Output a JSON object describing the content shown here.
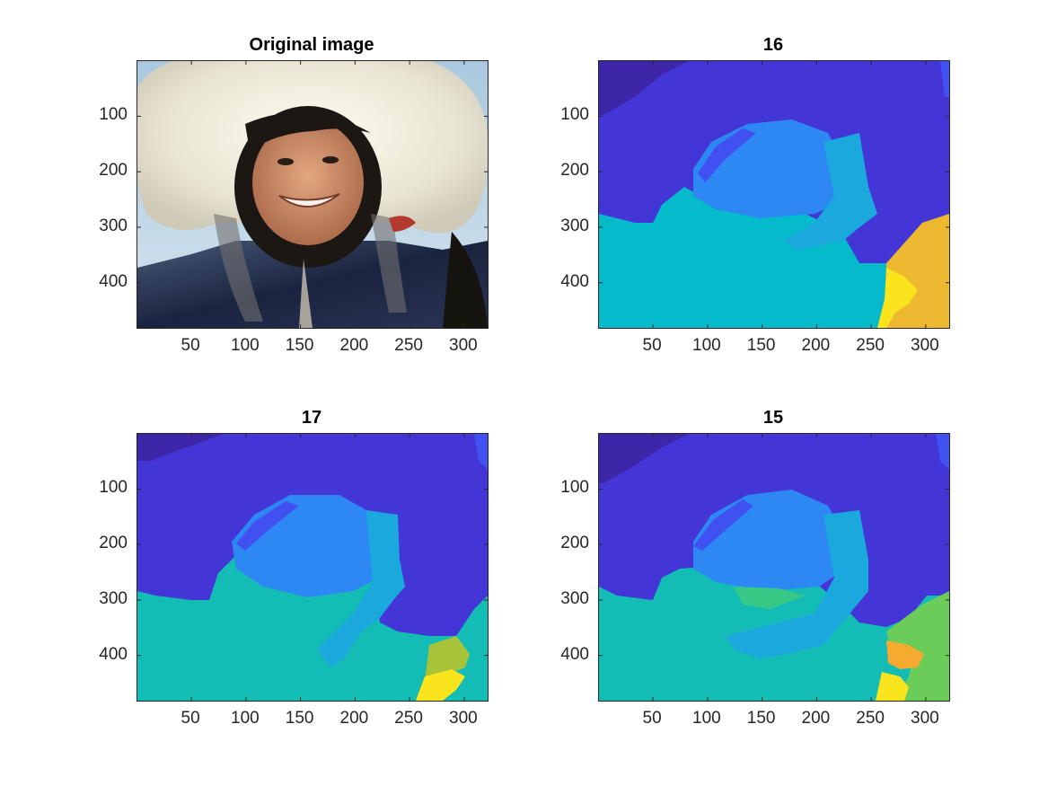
{
  "figure": {
    "panels": [
      {
        "id": "original",
        "title": "Original image",
        "kind": "photo"
      },
      {
        "id": "k16",
        "title": "16",
        "kind": "segmentation"
      },
      {
        "id": "k17",
        "title": "17",
        "kind": "segmentation"
      },
      {
        "id": "k15",
        "title": "15",
        "kind": "segmentation"
      }
    ]
  },
  "chart_data": [
    {
      "type": "heatmap",
      "title": "Original image",
      "xlim": [
        0.5,
        321.5
      ],
      "ylim": [
        0.5,
        481.5
      ],
      "y_reversed": true,
      "xticks": [
        50,
        100,
        150,
        200,
        250,
        300
      ],
      "yticks": [
        100,
        200,
        300,
        400
      ],
      "image": "photograph of a smiling person wearing a white fur-lined hood"
    },
    {
      "type": "heatmap",
      "title": "16",
      "xlim": [
        0.5,
        321.5
      ],
      "ylim": [
        0.5,
        481.5
      ],
      "y_reversed": true,
      "xticks": [
        50,
        100,
        150,
        200,
        250,
        300
      ],
      "yticks": [
        100,
        200,
        300,
        400
      ],
      "colors": [
        "#3e26a8",
        "#4435d6",
        "#4150f0",
        "#2d88f3",
        "#1ba8dd",
        "#04bacb",
        "#eeb830",
        "#f9e41d"
      ]
    },
    {
      "type": "heatmap",
      "title": "17",
      "xlim": [
        0.5,
        321.5
      ],
      "ylim": [
        0.5,
        481.5
      ],
      "y_reversed": true,
      "xticks": [
        50,
        100,
        150,
        200,
        250,
        300
      ],
      "yticks": [
        100,
        200,
        300,
        400
      ],
      "colors": [
        "#3e26a8",
        "#4435d6",
        "#4150f0",
        "#2d88f3",
        "#1ba8dd",
        "#13bcb5",
        "#a6c33a",
        "#f9e41d"
      ]
    },
    {
      "type": "heatmap",
      "title": "15",
      "xlim": [
        0.5,
        321.5
      ],
      "ylim": [
        0.5,
        481.5
      ],
      "y_reversed": true,
      "xticks": [
        50,
        100,
        150,
        200,
        250,
        300
      ],
      "yticks": [
        100,
        200,
        300,
        400
      ],
      "colors": [
        "#3e26a8",
        "#4435d6",
        "#4150f0",
        "#2d88f3",
        "#1ba8dd",
        "#13bcb5",
        "#38c886",
        "#6bcc5a",
        "#f5ab30",
        "#f9e41d"
      ]
    }
  ]
}
